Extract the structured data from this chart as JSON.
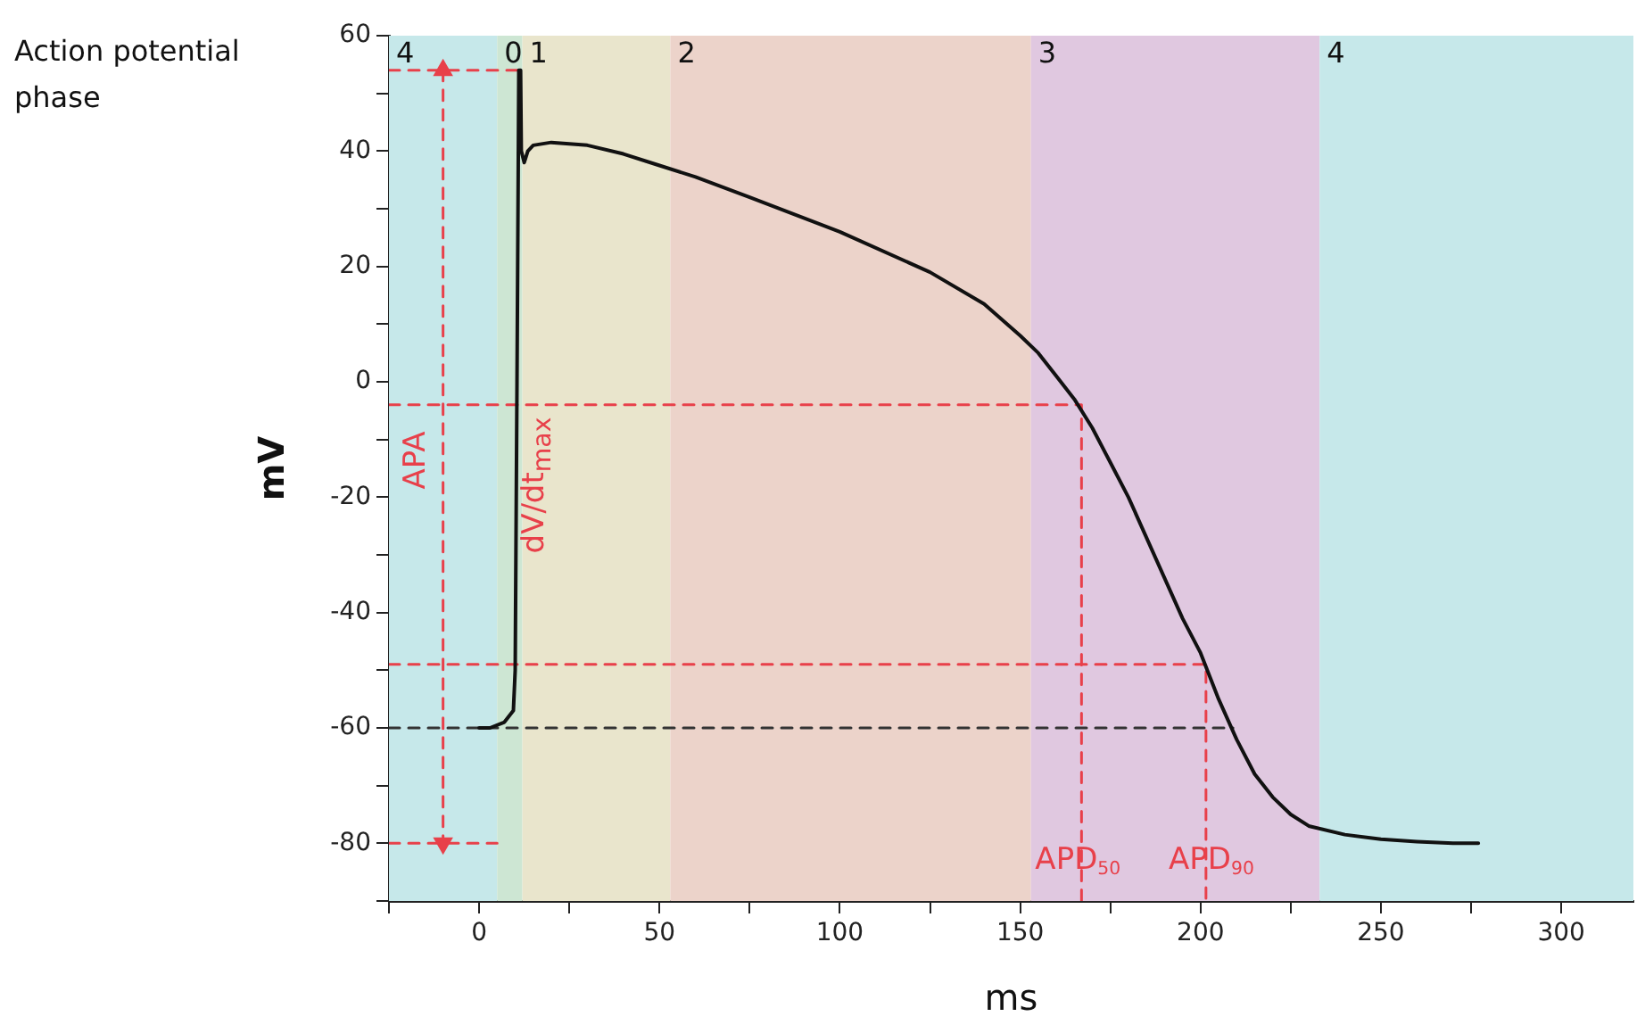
{
  "chart_data": {
    "type": "line",
    "xlabel": "ms",
    "ylabel": "mV",
    "xlim": [
      -25,
      320
    ],
    "ylim": [
      -90,
      60
    ],
    "xticks": [
      {
        "value": -25,
        "label": null
      },
      0,
      {
        "value": 25,
        "label": null
      },
      50,
      {
        "value": 75,
        "label": null
      },
      100,
      {
        "value": 125,
        "label": null
      },
      150,
      {
        "value": 175,
        "label": null
      },
      200,
      {
        "value": 225,
        "label": null
      },
      250,
      {
        "value": 275,
        "label": null
      },
      300
    ],
    "yticks": [
      {
        "value": -90,
        "label": null
      },
      -80,
      {
        "value": -70,
        "label": null
      },
      -60,
      {
        "value": -50,
        "label": null
      },
      -40,
      {
        "value": -30,
        "label": null
      },
      -20,
      {
        "value": -10,
        "label": null
      },
      0,
      {
        "value": 10,
        "label": null
      },
      20,
      {
        "value": 30,
        "label": null
      },
      40,
      {
        "value": 50,
        "label": null
      },
      60
    ],
    "grid": false,
    "legend": false,
    "bands": [
      {
        "axis": "x",
        "from": -25,
        "to": 5,
        "label": "4",
        "color": "#c6e8ea"
      },
      {
        "axis": "x",
        "from": 5,
        "to": 12,
        "label": "0",
        "color": "#cde6d3"
      },
      {
        "axis": "x",
        "from": 12,
        "to": 53,
        "label": "1",
        "color": "#e9e5cc"
      },
      {
        "axis": "x",
        "from": 53,
        "to": 153,
        "label": "2",
        "color": "#ecd3ca"
      },
      {
        "axis": "x",
        "from": 153,
        "to": 233,
        "label": "3",
        "color": "#e0c8e0"
      },
      {
        "axis": "x",
        "from": 233,
        "to": 320,
        "label": "4",
        "color": "#c6e8ea"
      }
    ],
    "series": [
      {
        "color": "#111111",
        "marker": "none",
        "line_style": "solid",
        "x": [
          0,
          3,
          7,
          9.5,
          10,
          10.5,
          11,
          11.5,
          11.7,
          12.5,
          13.5,
          15,
          20,
          30,
          40,
          50,
          60,
          75,
          100,
          125,
          140,
          150,
          155,
          160,
          165,
          170,
          175,
          180,
          185,
          190,
          195,
          200,
          205,
          210,
          215,
          220,
          225,
          230,
          240,
          250,
          260,
          270,
          277
        ],
        "values": [
          -60,
          -60,
          -59,
          -57,
          -50,
          0,
          54,
          54,
          40,
          38,
          40,
          41,
          41.5,
          41,
          39.5,
          37.5,
          35.5,
          32,
          26,
          19,
          13.5,
          8,
          5,
          1,
          -3,
          -8,
          -14,
          -20,
          -27,
          -34,
          -41,
          -47,
          -55,
          -62,
          -68,
          -72,
          -75,
          -77,
          -78.5,
          -79.3,
          -79.7,
          -80,
          -80
        ]
      },
      {
        "color": "#333333",
        "marker": "none",
        "line_style": "dashed",
        "x": [
          -25,
          209
        ],
        "values": [
          -60,
          -60
        ]
      },
      {
        "color": "#e8404a",
        "marker": "none",
        "line_style": "dashed",
        "x": [
          -25,
          11.5
        ],
        "values": [
          54,
          54
        ]
      },
      {
        "color": "#e8404a",
        "marker": "none",
        "line_style": "dashed",
        "x": [
          -25,
          5
        ],
        "values": [
          -80,
          -80
        ]
      },
      {
        "color": "#e8404a",
        "marker": "triangle",
        "line_style": "dashed",
        "x": [
          -10,
          -10
        ],
        "values": [
          54,
          -80
        ]
      },
      {
        "color": "#e8404a",
        "marker": "none",
        "line_style": "dashed",
        "x": [
          -25,
          167,
          167
        ],
        "values": [
          -4,
          -4,
          -90
        ]
      },
      {
        "color": "#e8404a",
        "marker": "none",
        "line_style": "dashed",
        "x": [
          -25,
          201.5,
          201.5
        ],
        "values": [
          -49,
          -49,
          -90
        ]
      }
    ],
    "annotations": [
      "Action potential phase",
      "APA",
      "dV/dt$_{max}$",
      {
        "text": "APD$_{50}$",
        "x": 166,
        "y": -83
      },
      {
        "text": "APD$_{90}$",
        "x": 203,
        "y": -83
      }
    ]
  }
}
